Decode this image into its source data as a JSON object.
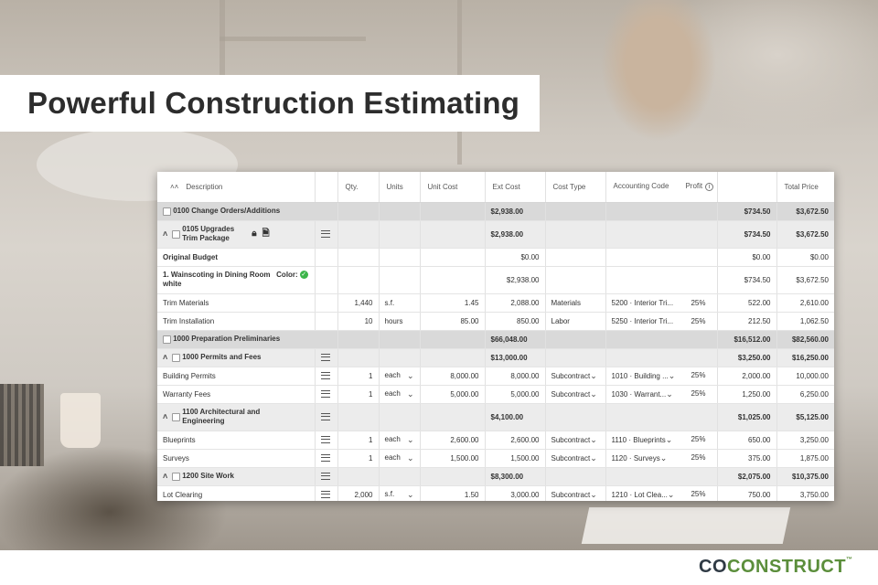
{
  "banner": {
    "title": "Powerful Construction Estimating"
  },
  "brand": {
    "logo_dark": "CO",
    "logo_green": "CONSTRUCT",
    "trademark": "™"
  },
  "colors": {
    "group_row": "#d9d9d9",
    "subgroup_row": "#ececec",
    "brand_green": "#5b8e3b",
    "brand_dark": "#2f3a44",
    "check_green": "#3cb54a"
  },
  "icons": {
    "collapse_all": "double-chevron-up-icon",
    "expand": "chevron-up-icon",
    "reorder": "hamburger-icon",
    "lock": "lock-icon",
    "document": "document-icon",
    "info": "info-icon",
    "approved": "checkmark-icon"
  },
  "table": {
    "headers": {
      "description": "Description",
      "qty": "Qty.",
      "units": "Units",
      "unit_cost": "Unit Cost",
      "ext_cost": "Ext Cost",
      "cost_type": "Cost Type",
      "accounting_code": "Accounting Code",
      "profit": "Profit",
      "total_price": "Total Price"
    },
    "rows": [
      {
        "desc": "0100 Change Orders/Additions",
        "ext": "$2,938.00",
        "profit_amt": "$734.50",
        "total": "$3,672.50"
      },
      {
        "desc": "0105 Upgrades Trim Package",
        "ext": "$2,938.00",
        "profit_amt": "$734.50",
        "total": "$3,672.50"
      },
      {
        "desc": "Original Budget",
        "ext": "$0.00",
        "profit_amt": "$0.00",
        "total": "$0.00"
      },
      {
        "desc": "1. Wainscoting in Dining Room",
        "color_label": "Color:",
        "color_value": "white",
        "ext": "$2,938.00",
        "profit_amt": "$734.50",
        "total": "$3,672.50"
      },
      {
        "desc": "Trim Materials",
        "qty": "1,440",
        "units": "s.f.",
        "unit_cost": "1.45",
        "ext": "2,088.00",
        "cost_type": "Materials",
        "acct": "5200 · Interior Tri...",
        "profit_pct": "25%",
        "profit_amt": "522.00",
        "total": "2,610.00"
      },
      {
        "desc": "Trim Installation",
        "qty": "10",
        "units": "hours",
        "unit_cost": "85.00",
        "ext": "850.00",
        "cost_type": "Labor",
        "acct": "5250 · Interior Tri...",
        "profit_pct": "25%",
        "profit_amt": "212.50",
        "total": "1,062.50"
      },
      {
        "desc": "1000 Preparation Preliminaries",
        "ext": "$66,048.00",
        "profit_amt": "$16,512.00",
        "total": "$82,560.00"
      },
      {
        "desc": "1000 Permits and Fees",
        "ext": "$13,000.00",
        "profit_amt": "$3,250.00",
        "total": "$16,250.00"
      },
      {
        "desc": "Building Permits",
        "qty": "1",
        "units": "each",
        "unit_cost": "8,000.00",
        "ext": "8,000.00",
        "cost_type": "Subcontract",
        "acct": "1010 · Building ...",
        "profit_pct": "25%",
        "profit_amt": "2,000.00",
        "total": "10,000.00"
      },
      {
        "desc": "Warranty Fees",
        "qty": "1",
        "units": "each",
        "unit_cost": "5,000.00",
        "ext": "5,000.00",
        "cost_type": "Subcontract",
        "acct": "1030 · Warrant...",
        "profit_pct": "25%",
        "profit_amt": "1,250.00",
        "total": "6,250.00"
      },
      {
        "desc": "1100 Architectural and Engineering",
        "ext": "$4,100.00",
        "profit_amt": "$1,025.00",
        "total": "$5,125.00"
      },
      {
        "desc": "Blueprints",
        "qty": "1",
        "units": "each",
        "unit_cost": "2,600.00",
        "ext": "2,600.00",
        "cost_type": "Subcontract",
        "acct": "1110 · Blueprints",
        "profit_pct": "25%",
        "profit_amt": "650.00",
        "total": "3,250.00"
      },
      {
        "desc": "Surveys",
        "qty": "1",
        "units": "each",
        "unit_cost": "1,500.00",
        "ext": "1,500.00",
        "cost_type": "Subcontract",
        "acct": "1120 · Surveys",
        "profit_pct": "25%",
        "profit_amt": "375.00",
        "total": "1,875.00"
      },
      {
        "desc": "1200 Site Work",
        "ext": "$8,300.00",
        "profit_amt": "$2,075.00",
        "total": "$10,375.00"
      },
      {
        "desc": "Lot Clearing",
        "qty": "2,000",
        "units": "s.f.",
        "unit_cost": "1.50",
        "ext": "3,000.00",
        "cost_type": "Subcontract",
        "acct": "1210 · Lot Clea...",
        "profit_pct": "25%",
        "profit_amt": "750.00",
        "total": "3,750.00"
      }
    ]
  }
}
